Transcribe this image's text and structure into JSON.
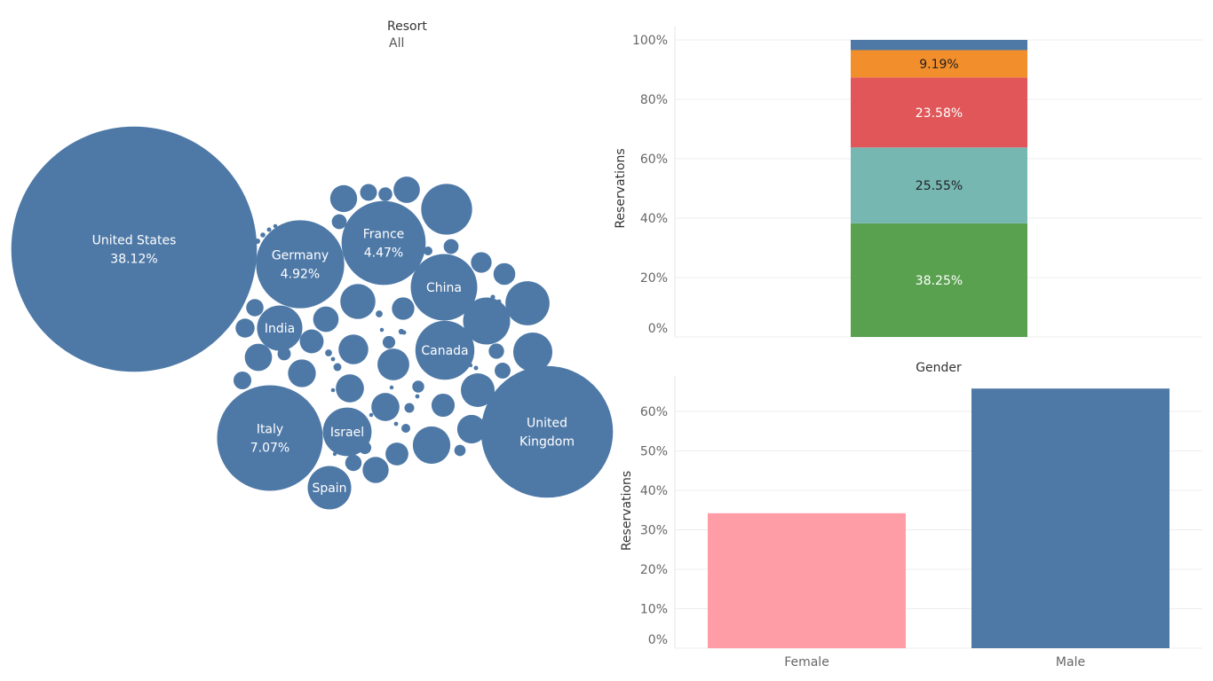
{
  "filter": {
    "label": "Resort",
    "value": "All"
  },
  "colors": {
    "bubble": "#4e79a7",
    "bubble_text": "#ffffff",
    "stack_blue": "#4e79a7",
    "stack_orange": "#f28e2b",
    "stack_red": "#e15759",
    "stack_teal": "#76b7b2",
    "stack_green": "#59a14f",
    "female": "#ff9da7",
    "male": "#4e79a7",
    "grid": "#ececec",
    "axis_text": "#666666"
  },
  "chart_data": [
    {
      "type": "bubble",
      "bubbles": [
        {
          "label": "United States",
          "value": 38.12,
          "text": "United States",
          "sub": "38.12%"
        },
        {
          "label": "United Kingdom",
          "value": 11.0,
          "text": "United Kingdom",
          "sub": ""
        },
        {
          "label": "Italy",
          "value": 7.07,
          "text": "Italy",
          "sub": "7.07%"
        },
        {
          "label": "Germany",
          "value": 4.92,
          "text": "Germany",
          "sub": "4.92%"
        },
        {
          "label": "France",
          "value": 4.47,
          "text": "France",
          "sub": "4.47%"
        },
        {
          "label": "China",
          "value": 2.8,
          "text": "China",
          "sub": ""
        },
        {
          "label": "Canada",
          "value": 2.2,
          "text": "Canada",
          "sub": ""
        },
        {
          "label": "Israel",
          "value": 1.5,
          "text": "Israel",
          "sub": ""
        },
        {
          "label": "India",
          "value": 1.3,
          "text": "India",
          "sub": ""
        },
        {
          "label": "Spain",
          "value": 1.2,
          "text": "Spain",
          "sub": ""
        }
      ],
      "unlabeled_bubble_values": [
        1.64,
        1.4,
        1.23,
        0.97,
        0.89,
        0.78,
        0.72,
        0.64,
        0.56,
        0.52,
        0.5,
        0.5,
        0.49,
        0.47,
        0.46,
        0.44,
        0.43,
        0.41,
        0.36,
        0.34,
        0.33,
        0.32,
        0.3,
        0.27,
        0.23,
        0.2,
        0.19,
        0.18,
        0.17,
        0.16,
        0.15,
        0.14,
        0.14,
        0.12,
        0.11,
        0.1,
        0.1,
        0.09,
        0.08,
        0.07,
        0.06,
        0.05,
        0.05,
        0.04,
        0.03,
        0.03,
        0.02,
        0.02,
        0.01,
        0.01
      ]
    },
    {
      "type": "bar",
      "stacked": true,
      "ylabel": "Reservations",
      "ylim": [
        0,
        100
      ],
      "yticks": [
        "0%",
        "20%",
        "40%",
        "60%",
        "80%",
        "100%"
      ],
      "segments": [
        {
          "value": 38.25,
          "label": "38.25%",
          "color": "#59a14f",
          "label_color": "#ffffff"
        },
        {
          "value": 25.55,
          "label": "25.55%",
          "color": "#76b7b2",
          "label_color": "#222222"
        },
        {
          "value": 23.58,
          "label": "23.58%",
          "color": "#e15759",
          "label_color": "#ffffff"
        },
        {
          "value": 9.19,
          "label": "9.19%",
          "color": "#f28e2b",
          "label_color": "#222222"
        },
        {
          "value": 3.43,
          "label": "",
          "color": "#4e79a7",
          "label_color": "#ffffff"
        }
      ]
    },
    {
      "type": "bar",
      "title": "Gender",
      "ylabel": "Reservations",
      "ylim": [
        0,
        70
      ],
      "yticks": [
        "0%",
        "10%",
        "20%",
        "30%",
        "40%",
        "50%",
        "60%"
      ],
      "categories": [
        "Female",
        "Male"
      ],
      "values": [
        34.2,
        65.8
      ],
      "colors": [
        "#ff9da7",
        "#4e79a7"
      ]
    }
  ]
}
